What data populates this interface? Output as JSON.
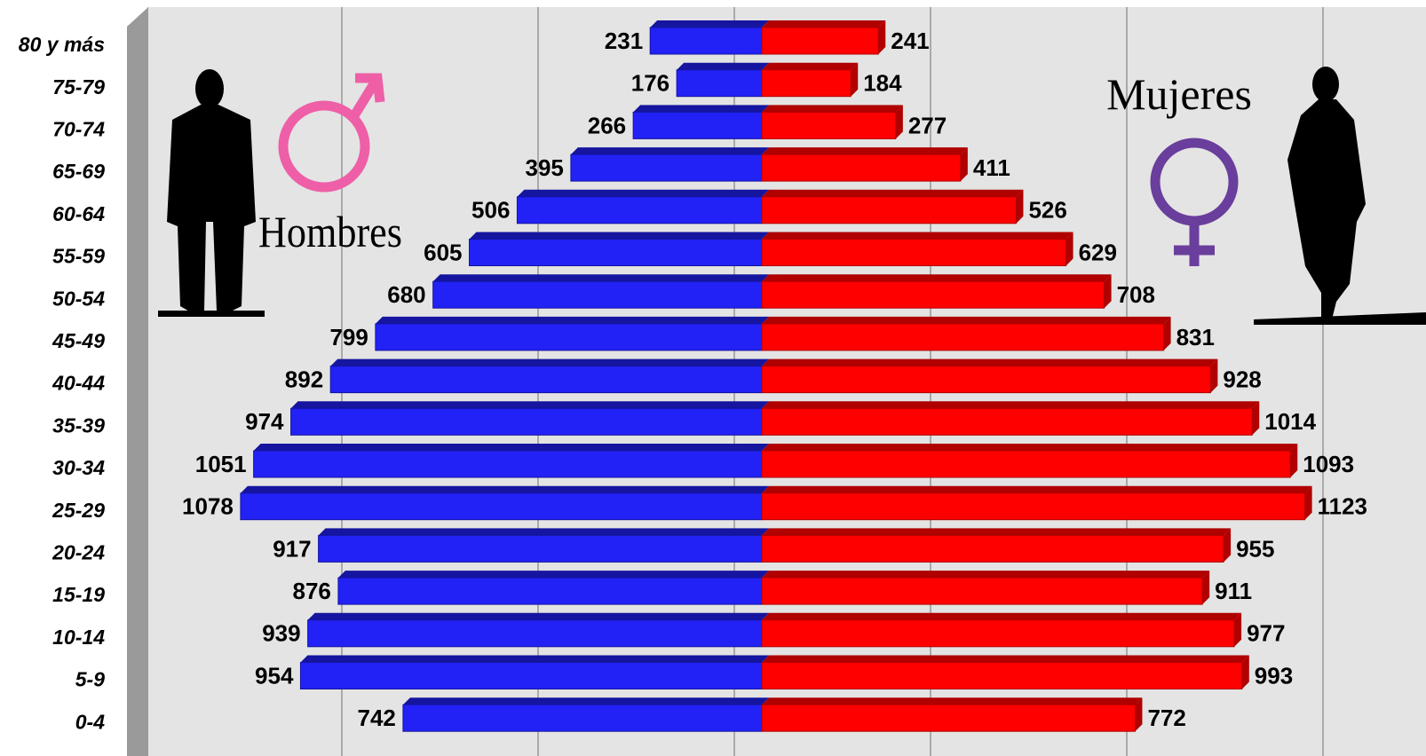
{
  "chart_data": {
    "type": "pyramid",
    "categories": [
      "80 y más",
      "75-79",
      "70-74",
      "65-69",
      "60-64",
      "55-59",
      "50-54",
      "45-49",
      "40-44",
      "35-39",
      "30-34",
      "25-29",
      "20-24",
      "15-19",
      "10-14",
      "5-9",
      "0-4"
    ],
    "series": [
      {
        "name": "Hombres",
        "color": "#2222f6",
        "values": [
          231,
          176,
          266,
          395,
          506,
          605,
          680,
          799,
          892,
          974,
          1051,
          1078,
          917,
          876,
          939,
          954,
          742
        ]
      },
      {
        "name": "Mujeres",
        "color": "#ff0000",
        "values": [
          241,
          184,
          277,
          411,
          526,
          629,
          708,
          831,
          928,
          1014,
          1093,
          1123,
          955,
          911,
          977,
          993,
          772
        ]
      }
    ],
    "xlim": [
      -1300,
      1300
    ]
  }
}
